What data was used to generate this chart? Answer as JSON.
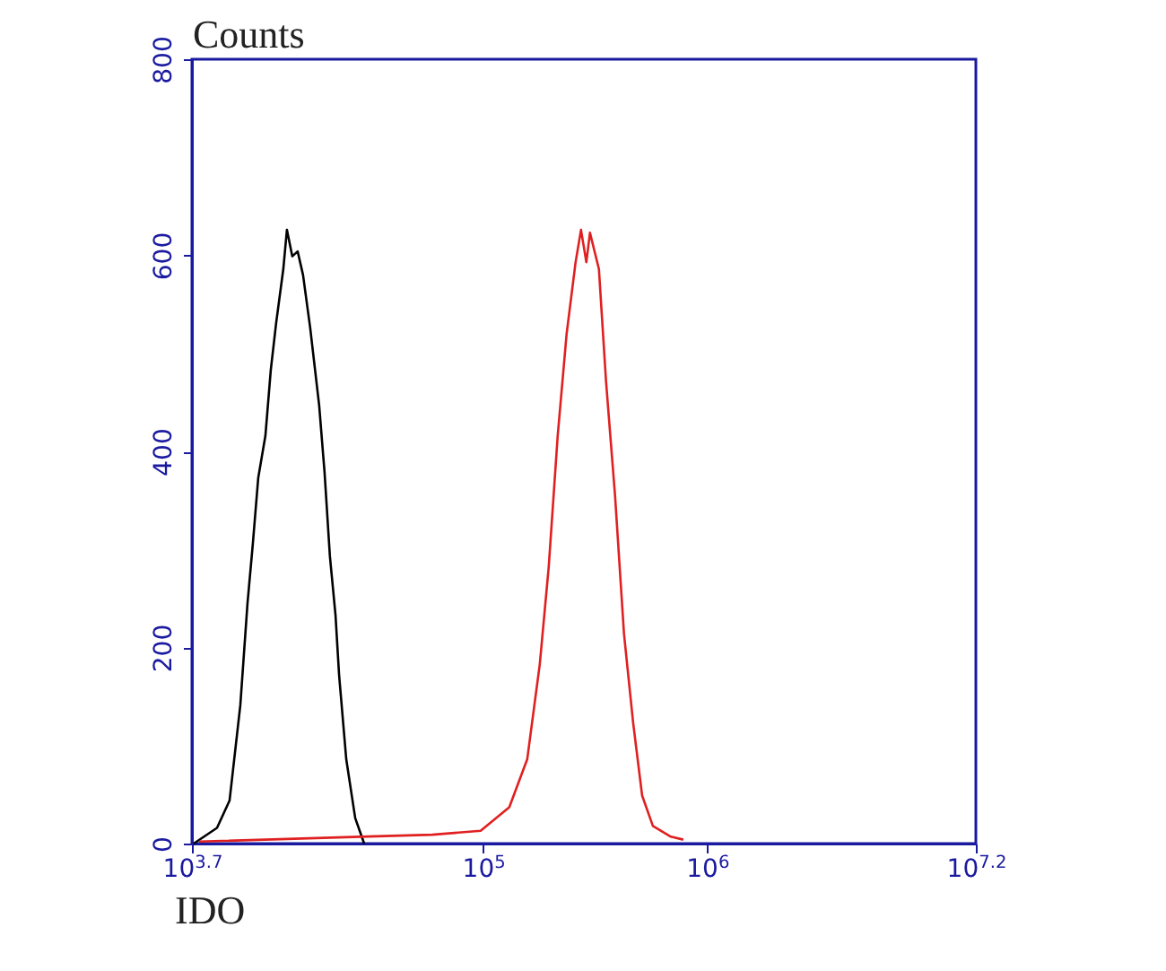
{
  "chart_data": {
    "type": "line",
    "xlabel": "IDO",
    "ylabel": "Counts",
    "log": "x",
    "xlim": [
      5011.87,
      15848932
    ],
    "xticks": [
      {
        "value": 5011.87,
        "label": "10$^{3.7}$"
      },
      {
        "value": 100000,
        "label": "10$^{5}$"
      },
      {
        "value": 1000000,
        "label": "10$^{6}$"
      },
      {
        "value": 15848932,
        "label": "10$^{7.2}$"
      }
    ],
    "ylim": [
      0,
      800
    ],
    "yticks": [
      0,
      200,
      400,
      600,
      800
    ],
    "grid": false,
    "legend": false,
    "series": [
      {
        "color": "#000000",
        "x": [
          5106,
          6486,
          7380,
          8241,
          8872,
          9376,
          9908,
          10666,
          11272,
          11912,
          12823,
          13305,
          14061,
          14859,
          15704,
          16904,
          18535,
          19588,
          20701,
          21928,
          22751,
          24490,
          26853,
          29444
        ],
        "values": [
          0,
          16,
          44,
          141,
          245,
          306,
          373,
          416,
          483,
          531,
          586,
          626,
          599,
          604,
          580,
          526,
          447,
          379,
          293,
          233,
          172,
          86,
          26,
          0
        ]
      },
      {
        "color": "#e02020",
        "x": [
          5395,
          28379,
          59293,
          97500,
          130900,
          157400,
          179100,
          196300,
          215300,
          236000,
          258800,
          273600,
          289000,
          300000,
          328900,
          354000,
          388200,
          425600,
          467700,
          512900,
          572800,
          688700,
          783400
        ],
        "values": [
          2,
          7,
          9,
          13,
          37,
          86,
          183,
          282,
          416,
          520,
          593,
          626,
          593,
          623,
          586,
          471,
          355,
          214,
          123,
          49,
          18,
          7,
          4
        ]
      }
    ]
  }
}
